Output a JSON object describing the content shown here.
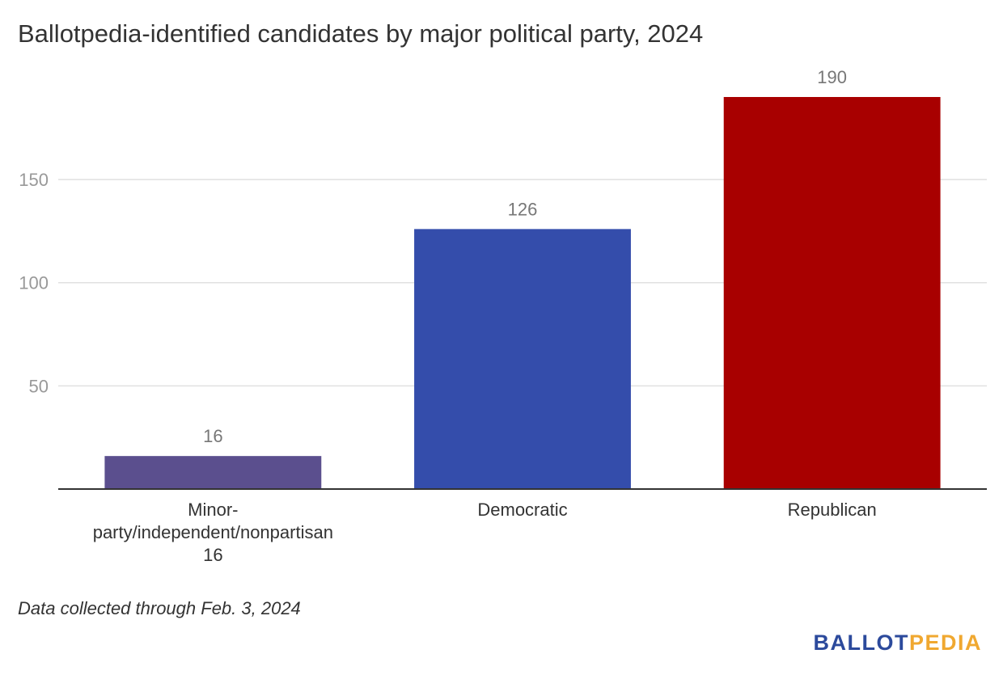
{
  "title": "Ballotpedia-identified candidates by major political party, 2024",
  "footnote": "Data collected through Feb. 3, 2024",
  "logo": {
    "part1": "BALLOT",
    "part2": "PEDIA"
  },
  "colors": {
    "grid": "#e0e0e0",
    "axis": "#333333",
    "tick": "#999999",
    "label": "#777777"
  },
  "chart_data": {
    "type": "bar",
    "categories": [
      [
        "Minor-",
        "party/independent/nonpartisan",
        "16"
      ],
      [
        "Democratic"
      ],
      [
        "Republican"
      ]
    ],
    "values": [
      16,
      126,
      190
    ],
    "colors": [
      "#5b4f8e",
      "#344dab",
      "#a80000"
    ],
    "ylim": [
      0,
      190
    ],
    "yticks": [
      50,
      100,
      150
    ],
    "grid": true,
    "title": "Ballotpedia-identified candidates by major political party, 2024",
    "xlabel": "",
    "ylabel": ""
  }
}
